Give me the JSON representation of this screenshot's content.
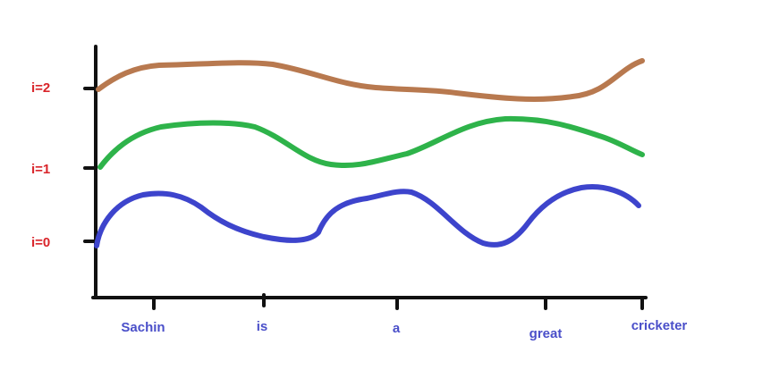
{
  "y_labels": [
    "i=0",
    "i=1",
    "i=2"
  ],
  "x_labels": [
    "Sachin",
    "is",
    "a",
    "great",
    "cricketer"
  ]
}
